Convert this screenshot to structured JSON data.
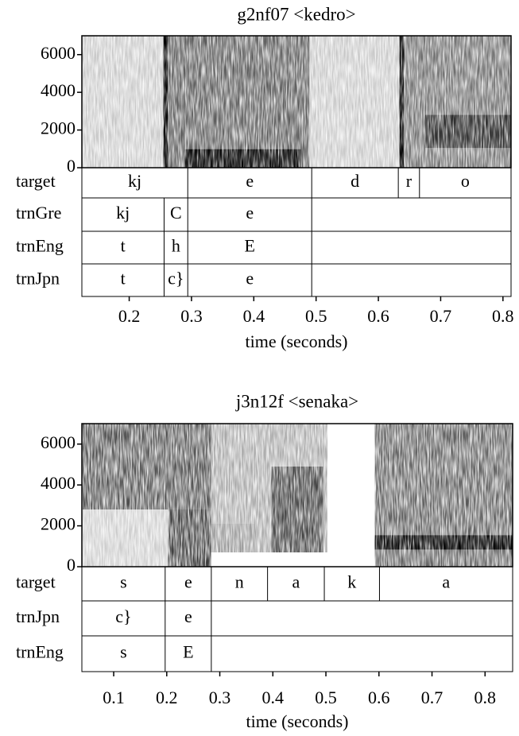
{
  "panels": [
    {
      "title": "g2nf07 <kedro>",
      "xlabel": "time (seconds)",
      "xlim": [
        0.124,
        0.813
      ],
      "xticks": [
        0.2,
        0.3,
        0.4,
        0.5,
        0.6,
        0.7,
        0.8
      ],
      "ylim": [
        0,
        7000
      ],
      "yticks": [
        0,
        2000,
        4000,
        6000
      ],
      "tiers": [
        {
          "name": "target",
          "intervals": [
            {
              "end": 0.294,
              "label": "kj"
            },
            {
              "end": 0.493,
              "label": "e"
            },
            {
              "end": 0.632,
              "label": "d"
            },
            {
              "end": 0.666,
              "label": "r"
            },
            {
              "end": 0.813,
              "label": "o"
            }
          ]
        },
        {
          "name": "trnGre",
          "intervals": [
            {
              "end": 0.256,
              "label": "kj"
            },
            {
              "end": 0.294,
              "label": "C"
            },
            {
              "end": 0.493,
              "label": "e"
            }
          ]
        },
        {
          "name": "trnEng",
          "intervals": [
            {
              "end": 0.256,
              "label": "t"
            },
            {
              "end": 0.294,
              "label": "h"
            },
            {
              "end": 0.493,
              "label": "E"
            }
          ]
        },
        {
          "name": "trnJpn",
          "intervals": [
            {
              "end": 0.256,
              "label": "t"
            },
            {
              "end": 0.294,
              "label": "c}"
            },
            {
              "end": 0.493,
              "label": "e"
            }
          ]
        }
      ]
    },
    {
      "title": "j3n12f <senaka>",
      "xlabel": "time (seconds)",
      "xlim": [
        0.04,
        0.852
      ],
      "xticks": [
        0.1,
        0.2,
        0.3,
        0.4,
        0.5,
        0.6,
        0.7,
        0.8
      ],
      "ylim": [
        0,
        7000
      ],
      "yticks": [
        0,
        2000,
        4000,
        6000
      ],
      "tiers": [
        {
          "name": "target",
          "intervals": [
            {
              "end": 0.197,
              "label": "s"
            },
            {
              "end": 0.284,
              "label": "e"
            },
            {
              "end": 0.39,
              "label": "n"
            },
            {
              "end": 0.497,
              "label": "a"
            },
            {
              "end": 0.601,
              "label": "k"
            },
            {
              "end": 0.852,
              "label": "a"
            }
          ]
        },
        {
          "name": "trnJpn",
          "intervals": [
            {
              "end": 0.197,
              "label": "c}"
            },
            {
              "end": 0.284,
              "label": "e"
            }
          ]
        },
        {
          "name": "trnEng",
          "intervals": [
            {
              "end": 0.197,
              "label": "s"
            },
            {
              "end": 0.284,
              "label": "E"
            }
          ]
        }
      ]
    }
  ]
}
